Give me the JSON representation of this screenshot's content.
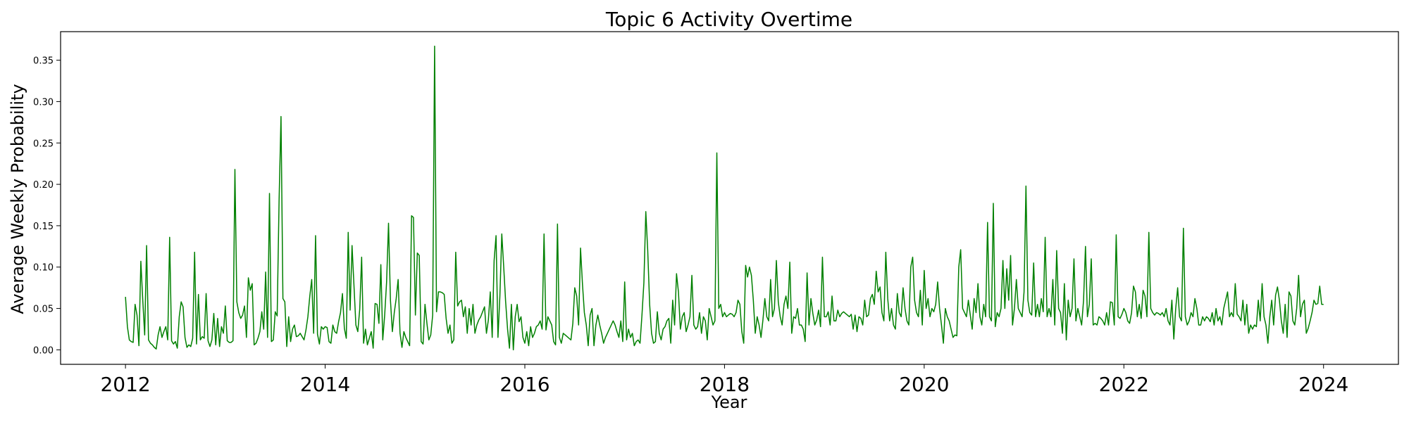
{
  "chart_data": {
    "type": "line",
    "title": "Topic 6 Activity Overtime",
    "xlabel": "Year",
    "ylabel": "Average Weekly Probability",
    "xlim": [
      2011.35,
      2024.75
    ],
    "ylim": [
      -0.0175,
      0.3845
    ],
    "x_ticks": [
      2012,
      2014,
      2016,
      2018,
      2020,
      2022,
      2024
    ],
    "x_tick_labels": [
      "2012",
      "2014",
      "2016",
      "2018",
      "2020",
      "2022",
      "2024"
    ],
    "y_ticks": [
      0.0,
      0.05,
      0.1,
      0.15,
      0.2,
      0.25,
      0.3,
      0.35
    ],
    "y_tick_labels": [
      "0.00",
      "0.05",
      "0.10",
      "0.15",
      "0.20",
      "0.25",
      "0.30",
      "0.35"
    ],
    "grid": false,
    "legend": "none",
    "series": [
      {
        "color": "#008000",
        "start_year": 2012.0,
        "step_years": 0.019231,
        "values": [
          0.064,
          0.028,
          0.012,
          0.01,
          0.009,
          0.055,
          0.042,
          0.005,
          0.107,
          0.06,
          0.018,
          0.126,
          0.012,
          0.008,
          0.006,
          0.003,
          0.001,
          0.018,
          0.028,
          0.015,
          0.022,
          0.028,
          0.012,
          0.136,
          0.011,
          0.007,
          0.01,
          0.002,
          0.04,
          0.058,
          0.052,
          0.015,
          0.003,
          0.006,
          0.004,
          0.014,
          0.118,
          0.007,
          0.067,
          0.012,
          0.016,
          0.014,
          0.068,
          0.011,
          0.004,
          0.012,
          0.044,
          0.006,
          0.038,
          0.004,
          0.028,
          0.02,
          0.053,
          0.011,
          0.009,
          0.009,
          0.011,
          0.218,
          0.058,
          0.045,
          0.038,
          0.042,
          0.053,
          0.015,
          0.087,
          0.072,
          0.08,
          0.006,
          0.008,
          0.014,
          0.022,
          0.046,
          0.025,
          0.094,
          0.015,
          0.189,
          0.01,
          0.012,
          0.046,
          0.041,
          0.18,
          0.282,
          0.062,
          0.058,
          0.004,
          0.04,
          0.01,
          0.025,
          0.03,
          0.016,
          0.017,
          0.02,
          0.016,
          0.012,
          0.024,
          0.04,
          0.065,
          0.085,
          0.02,
          0.138,
          0.019,
          0.007,
          0.028,
          0.025,
          0.028,
          0.027,
          0.01,
          0.008,
          0.03,
          0.022,
          0.02,
          0.034,
          0.045,
          0.068,
          0.026,
          0.014,
          0.142,
          0.048,
          0.126,
          0.078,
          0.03,
          0.022,
          0.049,
          0.112,
          0.008,
          0.025,
          0.006,
          0.014,
          0.022,
          0.002,
          0.056,
          0.055,
          0.032,
          0.103,
          0.012,
          0.042,
          0.082,
          0.153,
          0.06,
          0.022,
          0.045,
          0.062,
          0.085,
          0.02,
          0.003,
          0.022,
          0.015,
          0.01,
          0.005,
          0.162,
          0.16,
          0.042,
          0.117,
          0.114,
          0.01,
          0.007,
          0.055,
          0.032,
          0.012,
          0.018,
          0.042,
          0.367,
          0.046,
          0.07,
          0.07,
          0.069,
          0.067,
          0.038,
          0.02,
          0.03,
          0.008,
          0.012,
          0.118,
          0.053,
          0.058,
          0.06,
          0.04,
          0.052,
          0.02,
          0.05,
          0.03,
          0.055,
          0.02,
          0.03,
          0.036,
          0.04,
          0.046,
          0.052,
          0.02,
          0.036,
          0.07,
          0.015,
          0.108,
          0.138,
          0.015,
          0.065,
          0.14,
          0.1,
          0.058,
          0.025,
          0.002,
          0.055,
          0.0,
          0.04,
          0.055,
          0.034,
          0.04,
          0.015,
          0.008,
          0.022,
          0.005,
          0.028,
          0.015,
          0.02,
          0.028,
          0.03,
          0.035,
          0.025,
          0.14,
          0.024,
          0.04,
          0.035,
          0.03,
          0.01,
          0.006,
          0.152,
          0.015,
          0.008,
          0.02,
          0.018,
          0.016,
          0.014,
          0.012,
          0.032,
          0.075,
          0.065,
          0.03,
          0.123,
          0.08,
          0.045,
          0.03,
          0.005,
          0.042,
          0.05,
          0.005,
          0.03,
          0.042,
          0.03,
          0.02,
          0.008,
          0.015,
          0.02,
          0.025,
          0.03,
          0.035,
          0.03,
          0.022,
          0.015,
          0.035,
          0.01,
          0.082,
          0.012,
          0.025,
          0.015,
          0.02,
          0.005,
          0.01,
          0.012,
          0.008,
          0.042,
          0.081,
          0.167,
          0.12,
          0.055,
          0.02,
          0.008,
          0.01,
          0.046,
          0.02,
          0.012,
          0.025,
          0.028,
          0.035,
          0.038,
          0.008,
          0.06,
          0.03,
          0.092,
          0.07,
          0.025,
          0.04,
          0.045,
          0.022,
          0.03,
          0.04,
          0.09,
          0.03,
          0.025,
          0.028,
          0.045,
          0.02,
          0.04,
          0.035,
          0.012,
          0.05,
          0.04,
          0.03,
          0.035,
          0.238,
          0.05,
          0.055,
          0.04,
          0.045,
          0.04,
          0.042,
          0.044,
          0.043,
          0.04,
          0.045,
          0.06,
          0.055,
          0.022,
          0.008,
          0.102,
          0.088,
          0.1,
          0.09,
          0.06,
          0.02,
          0.04,
          0.03,
          0.015,
          0.036,
          0.062,
          0.04,
          0.035,
          0.085,
          0.04,
          0.05,
          0.108,
          0.058,
          0.04,
          0.03,
          0.055,
          0.065,
          0.05,
          0.106,
          0.02,
          0.04,
          0.038,
          0.05,
          0.03,
          0.03,
          0.025,
          0.01,
          0.093,
          0.03,
          0.062,
          0.044,
          0.03,
          0.036,
          0.048,
          0.028,
          0.112,
          0.04,
          0.04,
          0.046,
          0.03,
          0.065,
          0.035,
          0.035,
          0.048,
          0.04,
          0.044,
          0.046,
          0.044,
          0.042,
          0.04,
          0.043,
          0.025,
          0.042,
          0.022,
          0.04,
          0.038,
          0.03,
          0.06,
          0.04,
          0.042,
          0.062,
          0.067,
          0.055,
          0.095,
          0.07,
          0.076,
          0.045,
          0.035,
          0.118,
          0.062,
          0.035,
          0.05,
          0.03,
          0.025,
          0.068,
          0.045,
          0.04,
          0.075,
          0.05,
          0.035,
          0.03,
          0.1,
          0.112,
          0.06,
          0.045,
          0.04,
          0.072,
          0.03,
          0.096,
          0.05,
          0.062,
          0.04,
          0.05,
          0.046,
          0.055,
          0.082,
          0.05,
          0.03,
          0.008,
          0.05,
          0.04,
          0.035,
          0.025,
          0.015,
          0.018,
          0.017,
          0.1,
          0.121,
          0.05,
          0.045,
          0.04,
          0.06,
          0.042,
          0.025,
          0.062,
          0.045,
          0.08,
          0.04,
          0.03,
          0.055,
          0.04,
          0.154,
          0.04,
          0.035,
          0.177,
          0.028,
          0.045,
          0.04,
          0.05,
          0.108,
          0.05,
          0.098,
          0.06,
          0.114,
          0.03,
          0.05,
          0.085,
          0.05,
          0.045,
          0.04,
          0.07,
          0.198,
          0.06,
          0.045,
          0.042,
          0.105,
          0.04,
          0.055,
          0.04,
          0.062,
          0.046,
          0.136,
          0.04,
          0.05,
          0.04,
          0.085,
          0.03,
          0.12,
          0.05,
          0.045,
          0.02,
          0.08,
          0.012,
          0.06,
          0.04,
          0.05,
          0.11,
          0.035,
          0.05,
          0.04,
          0.03,
          0.06,
          0.125,
          0.04,
          0.055,
          0.11,
          0.03,
          0.032,
          0.03,
          0.04,
          0.038,
          0.035,
          0.03,
          0.045,
          0.03,
          0.058,
          0.057,
          0.03,
          0.139,
          0.04,
          0.038,
          0.043,
          0.05,
          0.045,
          0.035,
          0.032,
          0.045,
          0.077,
          0.07,
          0.04,
          0.055,
          0.038,
          0.072,
          0.065,
          0.04,
          0.142,
          0.05,
          0.045,
          0.042,
          0.045,
          0.044,
          0.042,
          0.045,
          0.04,
          0.05,
          0.035,
          0.03,
          0.06,
          0.013,
          0.05,
          0.075,
          0.04,
          0.035,
          0.147,
          0.04,
          0.03,
          0.035,
          0.045,
          0.04,
          0.062,
          0.05,
          0.03,
          0.03,
          0.04,
          0.035,
          0.04,
          0.038,
          0.034,
          0.045,
          0.03,
          0.05,
          0.035,
          0.04,
          0.03,
          0.05,
          0.06,
          0.07,
          0.04,
          0.045,
          0.04,
          0.08,
          0.043,
          0.04,
          0.035,
          0.06,
          0.03,
          0.055,
          0.02,
          0.03,
          0.025,
          0.03,
          0.028,
          0.06,
          0.035,
          0.08,
          0.04,
          0.03,
          0.008,
          0.04,
          0.06,
          0.03,
          0.066,
          0.076,
          0.06,
          0.035,
          0.02,
          0.055,
          0.015,
          0.07,
          0.065,
          0.035,
          0.03,
          0.05,
          0.09,
          0.04,
          0.055,
          0.06,
          0.02,
          0.026,
          0.035,
          0.045,
          0.06,
          0.055,
          0.056,
          0.077,
          0.055,
          0.055
        ]
      }
    ]
  }
}
